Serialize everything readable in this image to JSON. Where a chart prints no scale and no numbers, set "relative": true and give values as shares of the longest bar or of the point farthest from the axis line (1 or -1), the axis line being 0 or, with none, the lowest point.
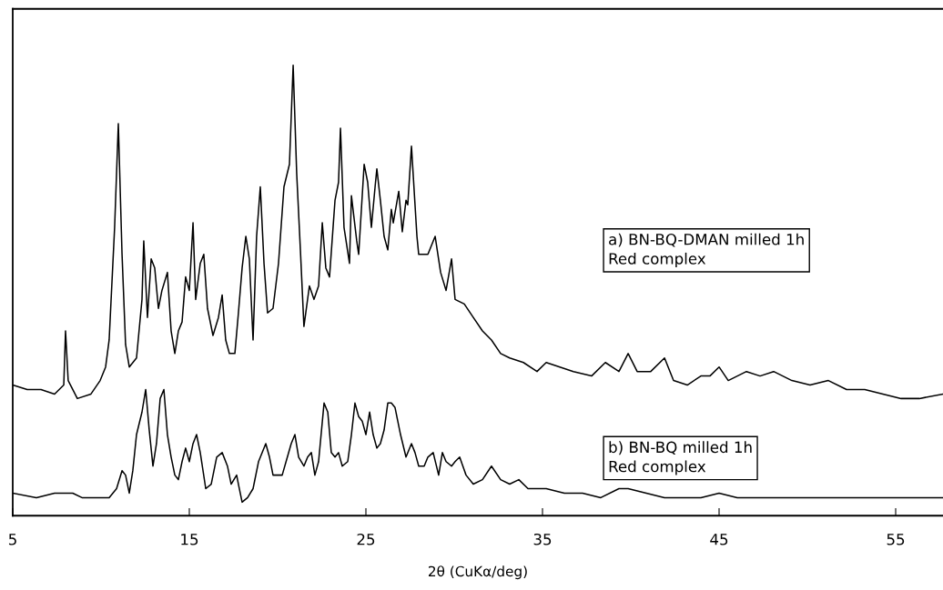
{
  "chart_data": {
    "type": "line",
    "relative": true,
    "xlabel": "2θ (CuKα/deg)",
    "xlim": [
      5,
      57.68
    ],
    "xticks": [
      5,
      15,
      25,
      35,
      45,
      55
    ],
    "grid": false,
    "legend": false,
    "marker": "none",
    "line_style": "solid",
    "series": [
      {
        "name": "a) BN-BQ-DMAN milled 1h\nRed complex",
        "color": "#000000",
        "x": [
          5.0,
          5.82,
          6.6,
          7.37,
          7.89,
          7.99,
          8.14,
          8.66,
          9.43,
          9.95,
          10.26,
          10.46,
          10.77,
          10.98,
          11.19,
          11.39,
          11.6,
          12.01,
          12.32,
          12.42,
          12.63,
          12.84,
          13.04,
          13.25,
          13.45,
          13.76,
          13.97,
          14.18,
          14.38,
          14.59,
          14.79,
          15.0,
          15.21,
          15.36,
          15.62,
          15.82,
          16.03,
          16.34,
          16.65,
          16.86,
          17.06,
          17.27,
          17.58,
          17.78,
          17.99,
          18.2,
          18.4,
          18.61,
          18.81,
          19.02,
          19.23,
          19.43,
          19.74,
          20.05,
          20.36,
          20.67,
          20.88,
          21.08,
          21.29,
          21.49,
          21.8,
          22.06,
          22.32,
          22.53,
          22.73,
          22.94,
          23.25,
          23.45,
          23.56,
          23.76,
          24.07,
          24.18,
          24.48,
          24.59,
          24.9,
          25.1,
          25.31,
          25.52,
          25.62,
          25.82,
          26.03,
          26.24,
          26.44,
          26.55,
          26.86,
          27.06,
          27.27,
          27.37,
          27.58,
          27.89,
          27.99,
          28.51,
          28.92,
          29.23,
          29.54,
          29.85,
          30.05,
          30.57,
          31.08,
          31.6,
          32.11,
          32.63,
          33.14,
          33.92,
          34.69,
          35.21,
          35.98,
          36.75,
          37.78,
          38.56,
          39.33,
          39.85,
          40.36,
          41.13,
          41.91,
          42.42,
          43.2,
          43.97,
          44.48,
          45.0,
          45.52,
          46.55,
          47.32,
          48.09,
          49.12,
          50.15,
          51.19,
          52.22,
          53.25,
          54.28,
          55.31,
          56.34,
          57.68
        ],
        "values": [
          0.29,
          0.28,
          0.28,
          0.27,
          0.29,
          0.41,
          0.3,
          0.26,
          0.27,
          0.3,
          0.33,
          0.39,
          0.64,
          0.87,
          0.58,
          0.38,
          0.33,
          0.35,
          0.48,
          0.61,
          0.44,
          0.57,
          0.55,
          0.46,
          0.5,
          0.54,
          0.41,
          0.36,
          0.41,
          0.43,
          0.53,
          0.5,
          0.65,
          0.48,
          0.56,
          0.58,
          0.46,
          0.4,
          0.44,
          0.49,
          0.39,
          0.36,
          0.36,
          0.45,
          0.55,
          0.62,
          0.57,
          0.39,
          0.62,
          0.73,
          0.56,
          0.45,
          0.46,
          0.56,
          0.73,
          0.78,
          1.0,
          0.76,
          0.59,
          0.42,
          0.51,
          0.48,
          0.51,
          0.65,
          0.55,
          0.53,
          0.7,
          0.74,
          0.86,
          0.64,
          0.56,
          0.71,
          0.61,
          0.58,
          0.78,
          0.74,
          0.64,
          0.73,
          0.77,
          0.7,
          0.62,
          0.59,
          0.68,
          0.65,
          0.72,
          0.63,
          0.7,
          0.69,
          0.82,
          0.62,
          0.58,
          0.58,
          0.62,
          0.54,
          0.5,
          0.57,
          0.48,
          0.47,
          0.44,
          0.41,
          0.39,
          0.36,
          0.35,
          0.34,
          0.32,
          0.34,
          0.33,
          0.32,
          0.31,
          0.34,
          0.32,
          0.36,
          0.32,
          0.32,
          0.35,
          0.3,
          0.29,
          0.31,
          0.31,
          0.33,
          0.3,
          0.32,
          0.31,
          0.32,
          0.3,
          0.29,
          0.3,
          0.28,
          0.28,
          0.27,
          0.26,
          0.26,
          0.27
        ]
      },
      {
        "name": "b) BN-BQ milled 1h\nRed complex",
        "color": "#000000",
        "x": [
          5.0,
          6.34,
          7.37,
          8.4,
          8.92,
          9.43,
          9.95,
          10.46,
          10.88,
          11.19,
          11.39,
          11.6,
          11.8,
          12.01,
          12.32,
          12.53,
          12.73,
          12.94,
          13.14,
          13.35,
          13.56,
          13.76,
          13.97,
          14.18,
          14.38,
          14.59,
          14.79,
          15.0,
          15.21,
          15.41,
          15.62,
          15.93,
          16.24,
          16.55,
          16.86,
          17.16,
          17.37,
          17.68,
          17.78,
          17.99,
          18.3,
          18.61,
          18.92,
          19.33,
          19.54,
          19.74,
          20.26,
          20.77,
          20.98,
          21.19,
          21.49,
          21.7,
          21.91,
          22.11,
          22.32,
          22.63,
          22.84,
          23.04,
          23.25,
          23.45,
          23.66,
          23.97,
          24.18,
          24.38,
          24.59,
          24.79,
          25.0,
          25.21,
          25.41,
          25.62,
          25.82,
          26.03,
          26.24,
          26.44,
          26.65,
          26.96,
          27.27,
          27.58,
          27.78,
          27.99,
          28.3,
          28.51,
          28.81,
          29.12,
          29.33,
          29.54,
          29.85,
          30.05,
          30.31,
          30.67,
          31.08,
          31.6,
          32.11,
          32.63,
          33.14,
          33.66,
          34.18,
          35.21,
          36.24,
          37.27,
          38.3,
          39.33,
          39.85,
          40.88,
          41.91,
          42.94,
          43.97,
          45.0,
          46.03,
          47.06,
          48.09,
          49.64,
          51.19,
          52.73,
          54.28,
          55.82,
          57.68
        ],
        "values": [
          0.05,
          0.04,
          0.05,
          0.05,
          0.04,
          0.04,
          0.04,
          0.04,
          0.06,
          0.1,
          0.09,
          0.05,
          0.1,
          0.18,
          0.23,
          0.28,
          0.19,
          0.11,
          0.16,
          0.26,
          0.28,
          0.18,
          0.13,
          0.09,
          0.08,
          0.12,
          0.15,
          0.12,
          0.16,
          0.18,
          0.14,
          0.06,
          0.07,
          0.13,
          0.14,
          0.11,
          0.07,
          0.09,
          0.07,
          0.03,
          0.04,
          0.06,
          0.12,
          0.16,
          0.13,
          0.09,
          0.09,
          0.16,
          0.18,
          0.13,
          0.11,
          0.13,
          0.14,
          0.09,
          0.12,
          0.25,
          0.23,
          0.14,
          0.13,
          0.14,
          0.11,
          0.12,
          0.18,
          0.25,
          0.22,
          0.21,
          0.18,
          0.23,
          0.18,
          0.15,
          0.16,
          0.19,
          0.25,
          0.25,
          0.24,
          0.18,
          0.13,
          0.16,
          0.14,
          0.11,
          0.11,
          0.13,
          0.14,
          0.09,
          0.14,
          0.12,
          0.11,
          0.12,
          0.13,
          0.09,
          0.07,
          0.08,
          0.11,
          0.08,
          0.07,
          0.08,
          0.06,
          0.06,
          0.05,
          0.05,
          0.04,
          0.06,
          0.06,
          0.05,
          0.04,
          0.04,
          0.04,
          0.05,
          0.04,
          0.04,
          0.04,
          0.04,
          0.04,
          0.04,
          0.04,
          0.04,
          0.04
        ]
      }
    ]
  }
}
